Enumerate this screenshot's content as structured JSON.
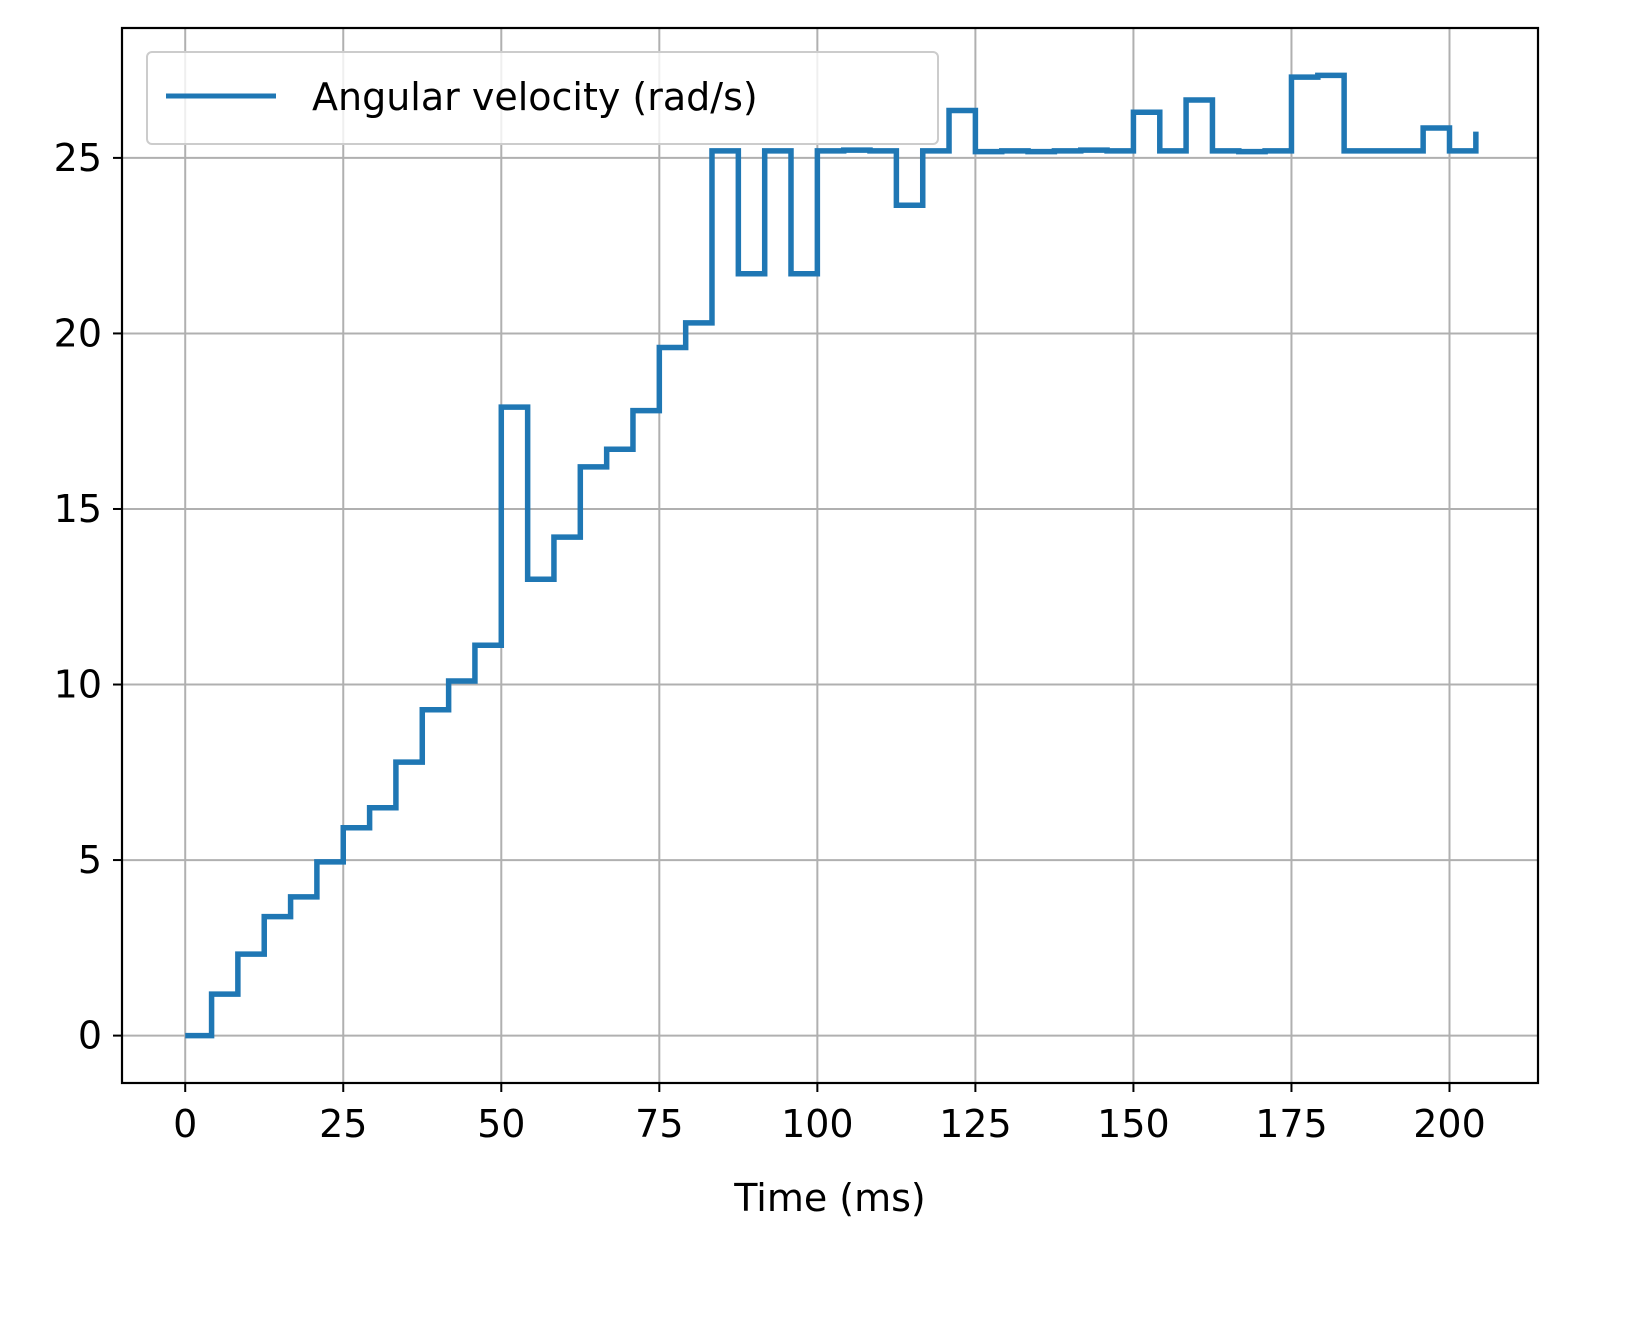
{
  "chart_data": {
    "type": "line",
    "step": "post",
    "xlabel": "Time (ms)",
    "ylabel": "",
    "title": "",
    "xlim": [
      -10,
      214
    ],
    "ylim": [
      -1.35,
      28.7
    ],
    "xticks": [
      0,
      25,
      50,
      75,
      100,
      125,
      150,
      175,
      200
    ],
    "yticks": [
      0,
      5,
      10,
      15,
      20,
      25
    ],
    "grid": true,
    "legend_position": "upper-left",
    "colors": {
      "series": "#1f77b4",
      "grid": "#b0b0b0",
      "axis": "#000000"
    },
    "series": [
      {
        "name": "Angular velocity (rad/s)",
        "x": [
          0,
          4.17,
          8.33,
          12.5,
          16.67,
          20.83,
          25,
          29.17,
          33.33,
          37.5,
          41.67,
          45.83,
          50,
          54.17,
          58.33,
          62.5,
          66.67,
          70.83,
          75,
          79.17,
          83.33,
          87.5,
          91.67,
          95.83,
          100,
          104.17,
          108.33,
          112.5,
          116.67,
          120.83,
          125,
          129.17,
          133.33,
          137.5,
          141.67,
          145.83,
          150,
          154.17,
          158.33,
          162.5,
          166.67,
          170.83,
          175,
          179.17,
          183.33,
          187.5,
          191.67,
          195.83,
          200,
          204.17
        ],
        "y": [
          0,
          1.18,
          2.32,
          3.39,
          3.95,
          4.95,
          5.92,
          6.49,
          7.79,
          9.28,
          10.1,
          11.12,
          17.9,
          13.0,
          14.2,
          16.2,
          16.7,
          17.8,
          19.6,
          20.3,
          25.2,
          21.7,
          25.2,
          21.7,
          25.2,
          25.22,
          25.2,
          23.65,
          25.2,
          26.35,
          25.18,
          25.2,
          25.18,
          25.2,
          25.22,
          25.2,
          26.3,
          25.2,
          26.65,
          25.2,
          25.18,
          25.2,
          27.3,
          27.35,
          25.2,
          25.2,
          25.2,
          25.85,
          25.2,
          25.75
        ]
      }
    ]
  }
}
